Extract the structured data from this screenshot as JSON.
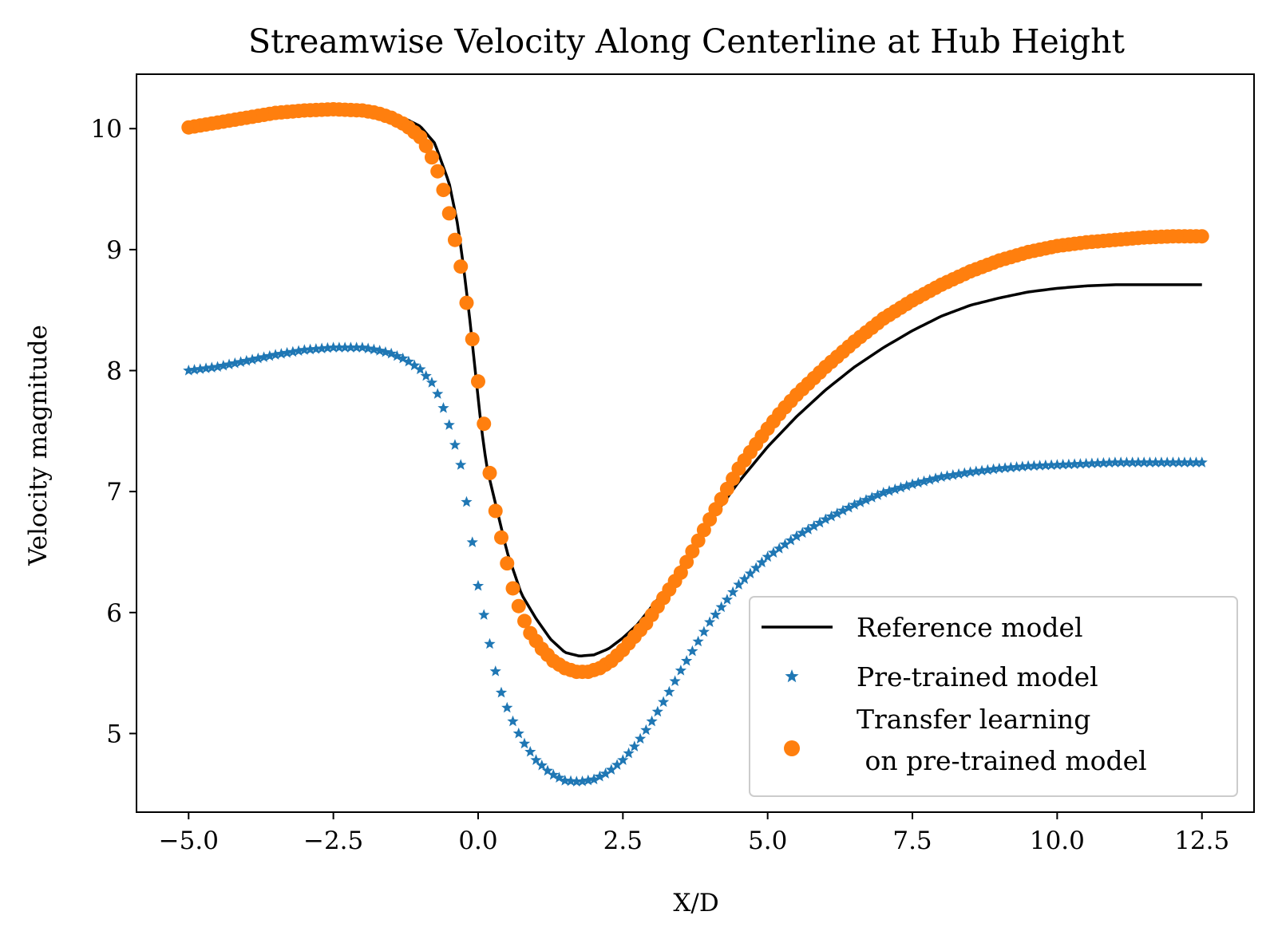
{
  "chart_data": {
    "type": "line",
    "title": "Streamwise Velocity Along Centerline at Hub Height",
    "xlabel": "X/D",
    "ylabel": "Velocity magnitude",
    "xlim": [
      -5.9,
      13.4
    ],
    "ylim": [
      4.35,
      10.45
    ],
    "xticks": [
      -5.0,
      -2.5,
      0.0,
      2.5,
      5.0,
      7.5,
      10.0,
      12.5
    ],
    "xtick_labels": [
      "−5.0",
      "−2.5",
      "0.0",
      "2.5",
      "5.0",
      "7.5",
      "10.0",
      "12.5"
    ],
    "yticks": [
      5,
      6,
      7,
      8,
      9,
      10
    ],
    "ytick_labels": [
      "5",
      "6",
      "7",
      "8",
      "9",
      "10"
    ],
    "grid": false,
    "legend_position": "lower-right",
    "series": [
      {
        "name": "Reference model",
        "style": "line",
        "color": "#000000",
        "x": [
          -5.0,
          -4.5,
          -4.0,
          -3.5,
          -3.0,
          -2.5,
          -2.0,
          -1.75,
          -1.5,
          -1.25,
          -1.0,
          -0.75,
          -0.5,
          -0.35,
          -0.25,
          -0.15,
          -0.05,
          0.05,
          0.15,
          0.3,
          0.5,
          0.75,
          1.0,
          1.25,
          1.5,
          1.75,
          2.0,
          2.25,
          2.5,
          2.75,
          3.0,
          3.25,
          3.5,
          4.0,
          4.5,
          5.0,
          5.5,
          6.0,
          6.5,
          7.0,
          7.5,
          8.0,
          8.5,
          9.0,
          9.5,
          10.0,
          10.5,
          11.0,
          11.5,
          12.0,
          12.5
        ],
        "y": [
          10.01,
          10.05,
          10.09,
          10.13,
          10.16,
          10.17,
          10.16,
          10.14,
          10.11,
          10.08,
          10.02,
          9.88,
          9.55,
          9.2,
          8.85,
          8.45,
          8.0,
          7.55,
          7.2,
          6.9,
          6.5,
          6.15,
          5.95,
          5.78,
          5.67,
          5.64,
          5.65,
          5.7,
          5.79,
          5.9,
          6.05,
          6.2,
          6.38,
          6.75,
          7.08,
          7.37,
          7.62,
          7.84,
          8.03,
          8.19,
          8.33,
          8.45,
          8.54,
          8.6,
          8.65,
          8.68,
          8.7,
          8.71,
          8.71,
          8.71,
          8.71
        ]
      },
      {
        "name": "Pre-trained model",
        "style": "star",
        "color": "#1f77b4",
        "x": [
          -5.0,
          -4.5,
          -4.0,
          -3.5,
          -3.0,
          -2.5,
          -2.0,
          -1.75,
          -1.5,
          -1.25,
          -1.0,
          -0.8,
          -0.65,
          -0.5,
          -0.3,
          -0.15,
          0.0,
          0.2,
          0.35,
          0.55,
          0.75,
          1.0,
          1.25,
          1.5,
          1.75,
          2.0,
          2.25,
          2.5,
          2.75,
          3.0,
          3.25,
          3.5,
          4.0,
          4.5,
          5.0,
          5.5,
          6.0,
          6.5,
          7.0,
          7.5,
          8.0,
          8.5,
          9.0,
          9.5,
          10.0,
          10.5,
          11.0,
          11.5,
          12.0,
          12.5
        ],
        "y": [
          8.0,
          8.03,
          8.08,
          8.13,
          8.17,
          8.19,
          8.19,
          8.17,
          8.14,
          8.09,
          8.01,
          7.9,
          7.76,
          7.55,
          7.22,
          6.76,
          6.22,
          5.74,
          5.4,
          5.15,
          4.95,
          4.78,
          4.67,
          4.61,
          4.6,
          4.62,
          4.68,
          4.78,
          4.92,
          5.1,
          5.3,
          5.52,
          5.92,
          6.23,
          6.46,
          6.63,
          6.77,
          6.89,
          6.99,
          7.06,
          7.12,
          7.16,
          7.19,
          7.21,
          7.22,
          7.23,
          7.24,
          7.24,
          7.24,
          7.24
        ]
      },
      {
        "name": "Transfer learning\n on pre-trained model",
        "style": "dot",
        "color": "#ff7f0e",
        "x": [
          -5.0,
          -4.5,
          -4.0,
          -3.5,
          -3.0,
          -2.5,
          -2.0,
          -1.75,
          -1.5,
          -1.25,
          -1.0,
          -0.85,
          -0.65,
          -0.5,
          -0.3,
          -0.1,
          0.1,
          0.25,
          0.45,
          0.6,
          0.75,
          0.9,
          1.1,
          1.3,
          1.5,
          1.7,
          1.9,
          2.1,
          2.3,
          2.5,
          2.7,
          2.9,
          3.1,
          3.3,
          3.5,
          3.75,
          4.0,
          4.25,
          4.5,
          4.75,
          5.0,
          5.25,
          5.5,
          6.0,
          6.5,
          7.0,
          7.5,
          8.0,
          8.5,
          9.0,
          9.5,
          10.0,
          10.5,
          11.0,
          11.5,
          12.0,
          12.5
        ],
        "y": [
          10.01,
          10.05,
          10.09,
          10.13,
          10.15,
          10.16,
          10.15,
          10.13,
          10.09,
          10.03,
          9.93,
          9.82,
          9.59,
          9.3,
          8.86,
          8.26,
          7.56,
          6.95,
          6.51,
          6.2,
          5.98,
          5.83,
          5.7,
          5.6,
          5.54,
          5.51,
          5.51,
          5.54,
          5.6,
          5.69,
          5.8,
          5.91,
          6.05,
          6.19,
          6.33,
          6.55,
          6.77,
          6.98,
          7.19,
          7.36,
          7.52,
          7.67,
          7.8,
          8.03,
          8.24,
          8.43,
          8.58,
          8.71,
          8.82,
          8.91,
          8.98,
          9.03,
          9.06,
          9.08,
          9.1,
          9.11,
          9.11
        ]
      }
    ]
  }
}
